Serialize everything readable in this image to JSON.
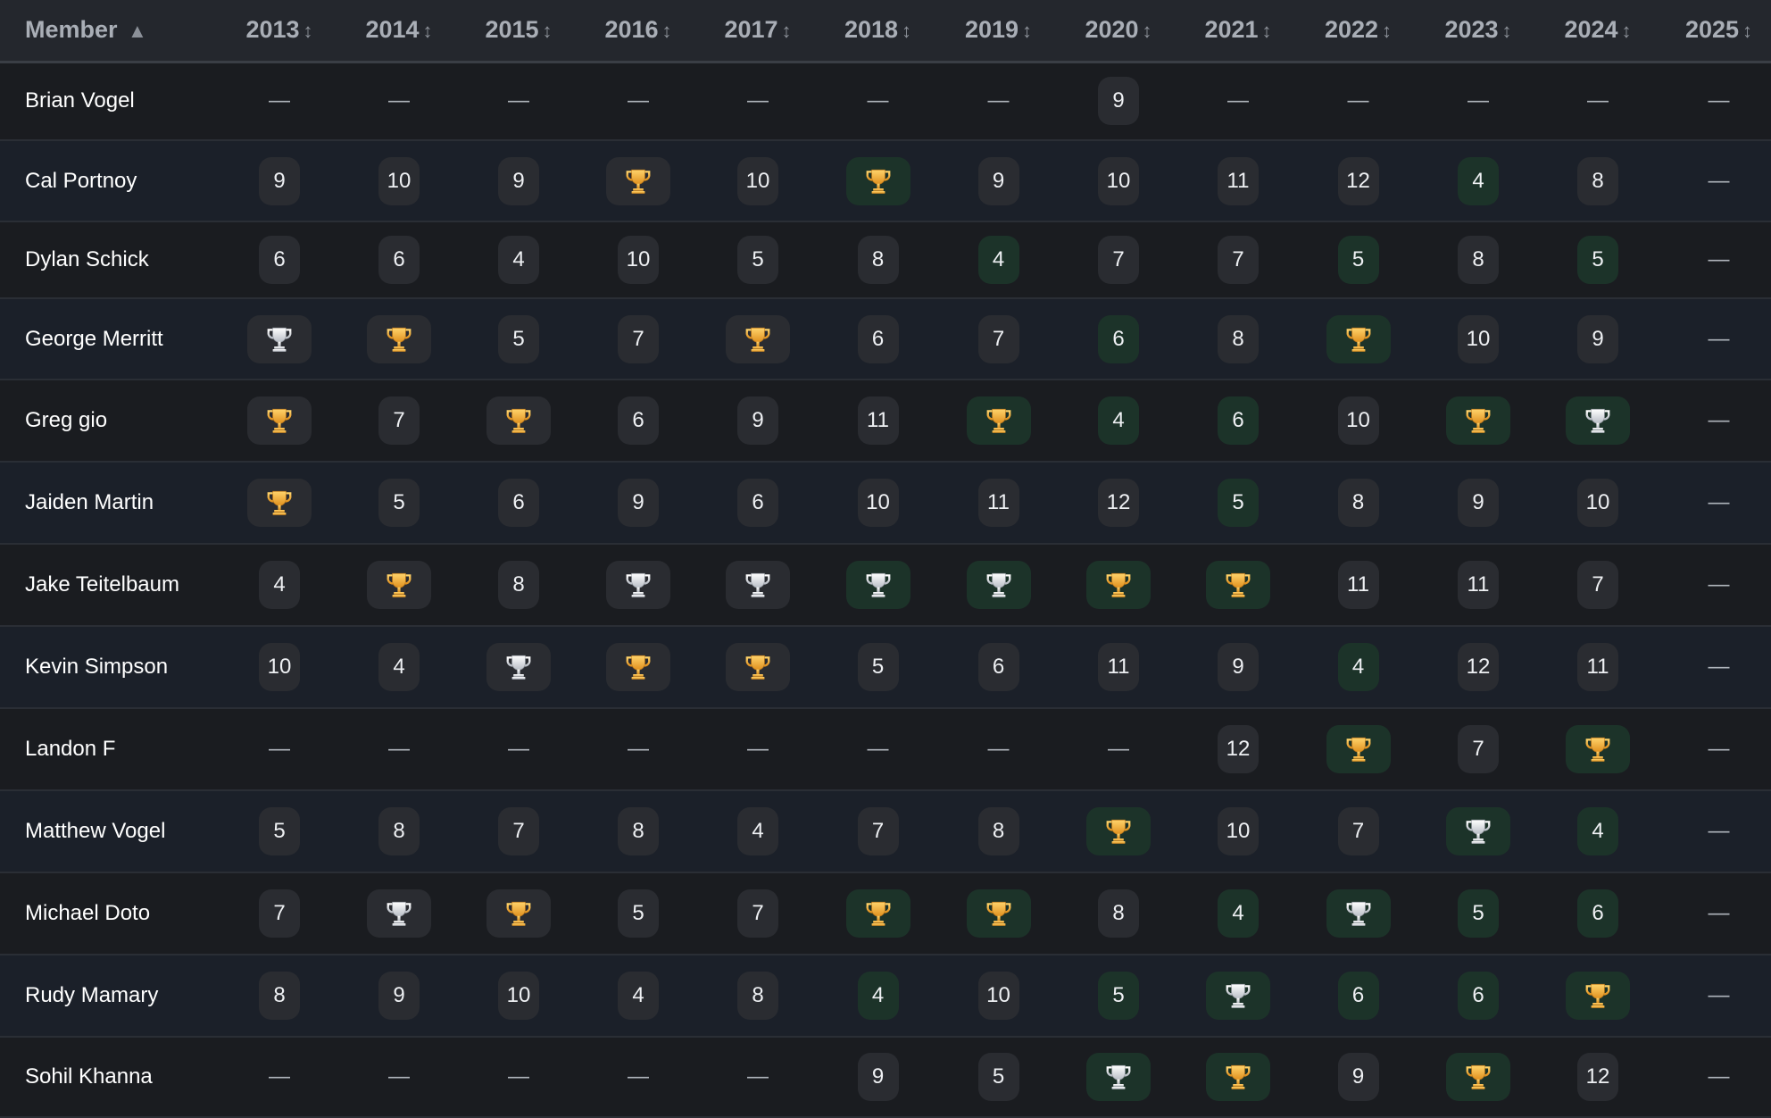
{
  "columns": {
    "member_label": "Member",
    "member_sort_icon": "▲",
    "year_sort_icon": "↕",
    "years": [
      "2013",
      "2014",
      "2015",
      "2016",
      "2017",
      "2018",
      "2019",
      "2020",
      "2021",
      "2022",
      "2023",
      "2024",
      "2025"
    ]
  },
  "legend_colors": {
    "gold": "#f2b13a",
    "silver": "#e4e6ea",
    "green": "#1c3329",
    "neutral": "#2a2c31"
  },
  "icons": {
    "gold": "gold-trophy-icon",
    "silver": "silver-trophy-icon"
  },
  "rows": [
    {
      "member": "Brian Vogel",
      "cells": [
        "—",
        "—",
        "—",
        "—",
        "—",
        "—",
        "—",
        "9",
        "—",
        "—",
        "—",
        "—",
        "—"
      ],
      "tones": [
        "",
        "",
        "",
        "",
        "",
        "",
        "",
        "n",
        "",
        "",
        "",
        "",
        ""
      ]
    },
    {
      "member": "Cal Portnoy",
      "cells": [
        "9",
        "10",
        "9",
        "gold",
        "10",
        "gold",
        "9",
        "10",
        "11",
        "12",
        "4",
        "8",
        "—"
      ],
      "tones": [
        "n",
        "n",
        "n",
        "n",
        "n",
        "g",
        "n",
        "n",
        "n",
        "n",
        "g",
        "n",
        ""
      ]
    },
    {
      "member": "Dylan Schick",
      "cells": [
        "6",
        "6",
        "4",
        "10",
        "5",
        "8",
        "4",
        "7",
        "7",
        "5",
        "8",
        "5",
        "—"
      ],
      "tones": [
        "n",
        "n",
        "n",
        "n",
        "n",
        "n",
        "g",
        "n",
        "n",
        "g",
        "n",
        "g",
        ""
      ]
    },
    {
      "member": "George Merritt",
      "cells": [
        "silver",
        "gold",
        "5",
        "7",
        "gold",
        "6",
        "7",
        "6",
        "8",
        "gold",
        "10",
        "9",
        "—"
      ],
      "tones": [
        "n",
        "n",
        "n",
        "n",
        "n",
        "n",
        "n",
        "g",
        "n",
        "g",
        "n",
        "n",
        ""
      ]
    },
    {
      "member": "Greg gio",
      "cells": [
        "gold",
        "7",
        "gold",
        "6",
        "9",
        "11",
        "gold",
        "4",
        "6",
        "10",
        "gold",
        "silver",
        "—"
      ],
      "tones": [
        "n",
        "n",
        "n",
        "n",
        "n",
        "n",
        "g",
        "g",
        "g",
        "n",
        "g",
        "g",
        ""
      ]
    },
    {
      "member": "Jaiden Martin",
      "cells": [
        "gold",
        "5",
        "6",
        "9",
        "6",
        "10",
        "11",
        "12",
        "5",
        "8",
        "9",
        "10",
        "—"
      ],
      "tones": [
        "n",
        "n",
        "n",
        "n",
        "n",
        "n",
        "n",
        "n",
        "g",
        "n",
        "n",
        "n",
        ""
      ]
    },
    {
      "member": "Jake Teitelbaum",
      "cells": [
        "4",
        "gold",
        "8",
        "silver",
        "silver",
        "silver",
        "silver",
        "gold",
        "gold",
        "11",
        "11",
        "7",
        "—"
      ],
      "tones": [
        "n",
        "n",
        "n",
        "n",
        "n",
        "g",
        "g",
        "g",
        "g",
        "n",
        "n",
        "n",
        ""
      ]
    },
    {
      "member": "Kevin Simpson",
      "cells": [
        "10",
        "4",
        "silver",
        "gold",
        "gold",
        "5",
        "6",
        "11",
        "9",
        "4",
        "12",
        "11",
        "—"
      ],
      "tones": [
        "n",
        "n",
        "n",
        "n",
        "n",
        "n",
        "n",
        "n",
        "n",
        "g",
        "n",
        "n",
        ""
      ]
    },
    {
      "member": "Landon F",
      "cells": [
        "—",
        "—",
        "—",
        "—",
        "—",
        "—",
        "—",
        "—",
        "12",
        "gold",
        "7",
        "gold",
        "—"
      ],
      "tones": [
        "",
        "",
        "",
        "",
        "",
        "",
        "",
        "",
        "n",
        "g",
        "n",
        "g",
        ""
      ]
    },
    {
      "member": "Matthew Vogel",
      "cells": [
        "5",
        "8",
        "7",
        "8",
        "4",
        "7",
        "8",
        "gold",
        "10",
        "7",
        "silver",
        "4",
        "—"
      ],
      "tones": [
        "n",
        "n",
        "n",
        "n",
        "n",
        "n",
        "n",
        "g",
        "n",
        "n",
        "g",
        "g",
        ""
      ]
    },
    {
      "member": "Michael Doto",
      "cells": [
        "7",
        "silver",
        "gold",
        "5",
        "7",
        "gold",
        "gold",
        "8",
        "4",
        "silver",
        "5",
        "6",
        "—"
      ],
      "tones": [
        "n",
        "n",
        "n",
        "n",
        "n",
        "g",
        "g",
        "n",
        "g",
        "g",
        "g",
        "g",
        ""
      ]
    },
    {
      "member": "Rudy Mamary",
      "cells": [
        "8",
        "9",
        "10",
        "4",
        "8",
        "4",
        "10",
        "5",
        "silver",
        "6",
        "6",
        "gold",
        "—"
      ],
      "tones": [
        "n",
        "n",
        "n",
        "n",
        "n",
        "g",
        "n",
        "g",
        "g",
        "g",
        "g",
        "g",
        ""
      ]
    },
    {
      "member": "Sohil Khanna",
      "cells": [
        "—",
        "—",
        "—",
        "—",
        "—",
        "9",
        "5",
        "silver",
        "gold",
        "9",
        "gold",
        "12",
        "—"
      ],
      "tones": [
        "",
        "",
        "",
        "",
        "",
        "n",
        "n",
        "g",
        "g",
        "n",
        "g",
        "n",
        ""
      ]
    }
  ]
}
